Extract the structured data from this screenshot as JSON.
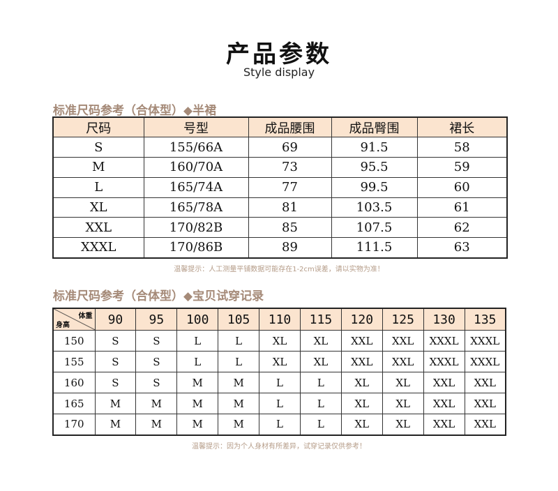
{
  "title": "产品参数",
  "subtitle": "Style display",
  "section1": {
    "heading": "标准尺码参考（合体型）◆半裙",
    "columns": [
      "尺码",
      "号型",
      "成品腰围",
      "成品臀围",
      "裙长"
    ],
    "rows": [
      [
        "S",
        "155/66A",
        "69",
        "91.5",
        "58"
      ],
      [
        "M",
        "160/70A",
        "73",
        "95.5",
        "59"
      ],
      [
        "L",
        "165/74A",
        "77",
        "99.5",
        "60"
      ],
      [
        "XL",
        "165/78A",
        "81",
        "103.5",
        "61"
      ],
      [
        "XXL",
        "170/82B",
        "85",
        "107.5",
        "62"
      ],
      [
        "XXXL",
        "170/86B",
        "89",
        "111.5",
        "63"
      ]
    ],
    "note": "温馨提示：人工测量平铺数据可能存在1-2cm误差，请以实物为准！"
  },
  "section2": {
    "heading": "标准尺码参考（合体型）◆宝贝试穿记录",
    "corner_top": "体重",
    "corner_bottom": "身高",
    "weights": [
      "90",
      "95",
      "100",
      "105",
      "110",
      "115",
      "120",
      "125",
      "130",
      "135"
    ],
    "rows": [
      {
        "height": "150",
        "sizes": [
          "S",
          "S",
          "L",
          "L",
          "XL",
          "XL",
          "XXL",
          "XXL",
          "XXXL",
          "XXXL"
        ]
      },
      {
        "height": "155",
        "sizes": [
          "S",
          "S",
          "L",
          "L",
          "XL",
          "XL",
          "XXL",
          "XXL",
          "XXXL",
          "XXXL"
        ]
      },
      {
        "height": "160",
        "sizes": [
          "S",
          "S",
          "M",
          "M",
          "L",
          "L",
          "XL",
          "XL",
          "XXL",
          "XXL"
        ]
      },
      {
        "height": "165",
        "sizes": [
          "M",
          "M",
          "M",
          "M",
          "L",
          "L",
          "XL",
          "XL",
          "XXL",
          "XXL"
        ]
      },
      {
        "height": "170",
        "sizes": [
          "M",
          "M",
          "M",
          "M",
          "L",
          "L",
          "XL",
          "XL",
          "XXL",
          "XXL"
        ]
      }
    ],
    "note": "温馨提示：因为个人身材有所差异，试穿记录仅供参考！"
  },
  "colors": {
    "header_fill": "#fbe4cf",
    "heading": "#a58a78"
  }
}
